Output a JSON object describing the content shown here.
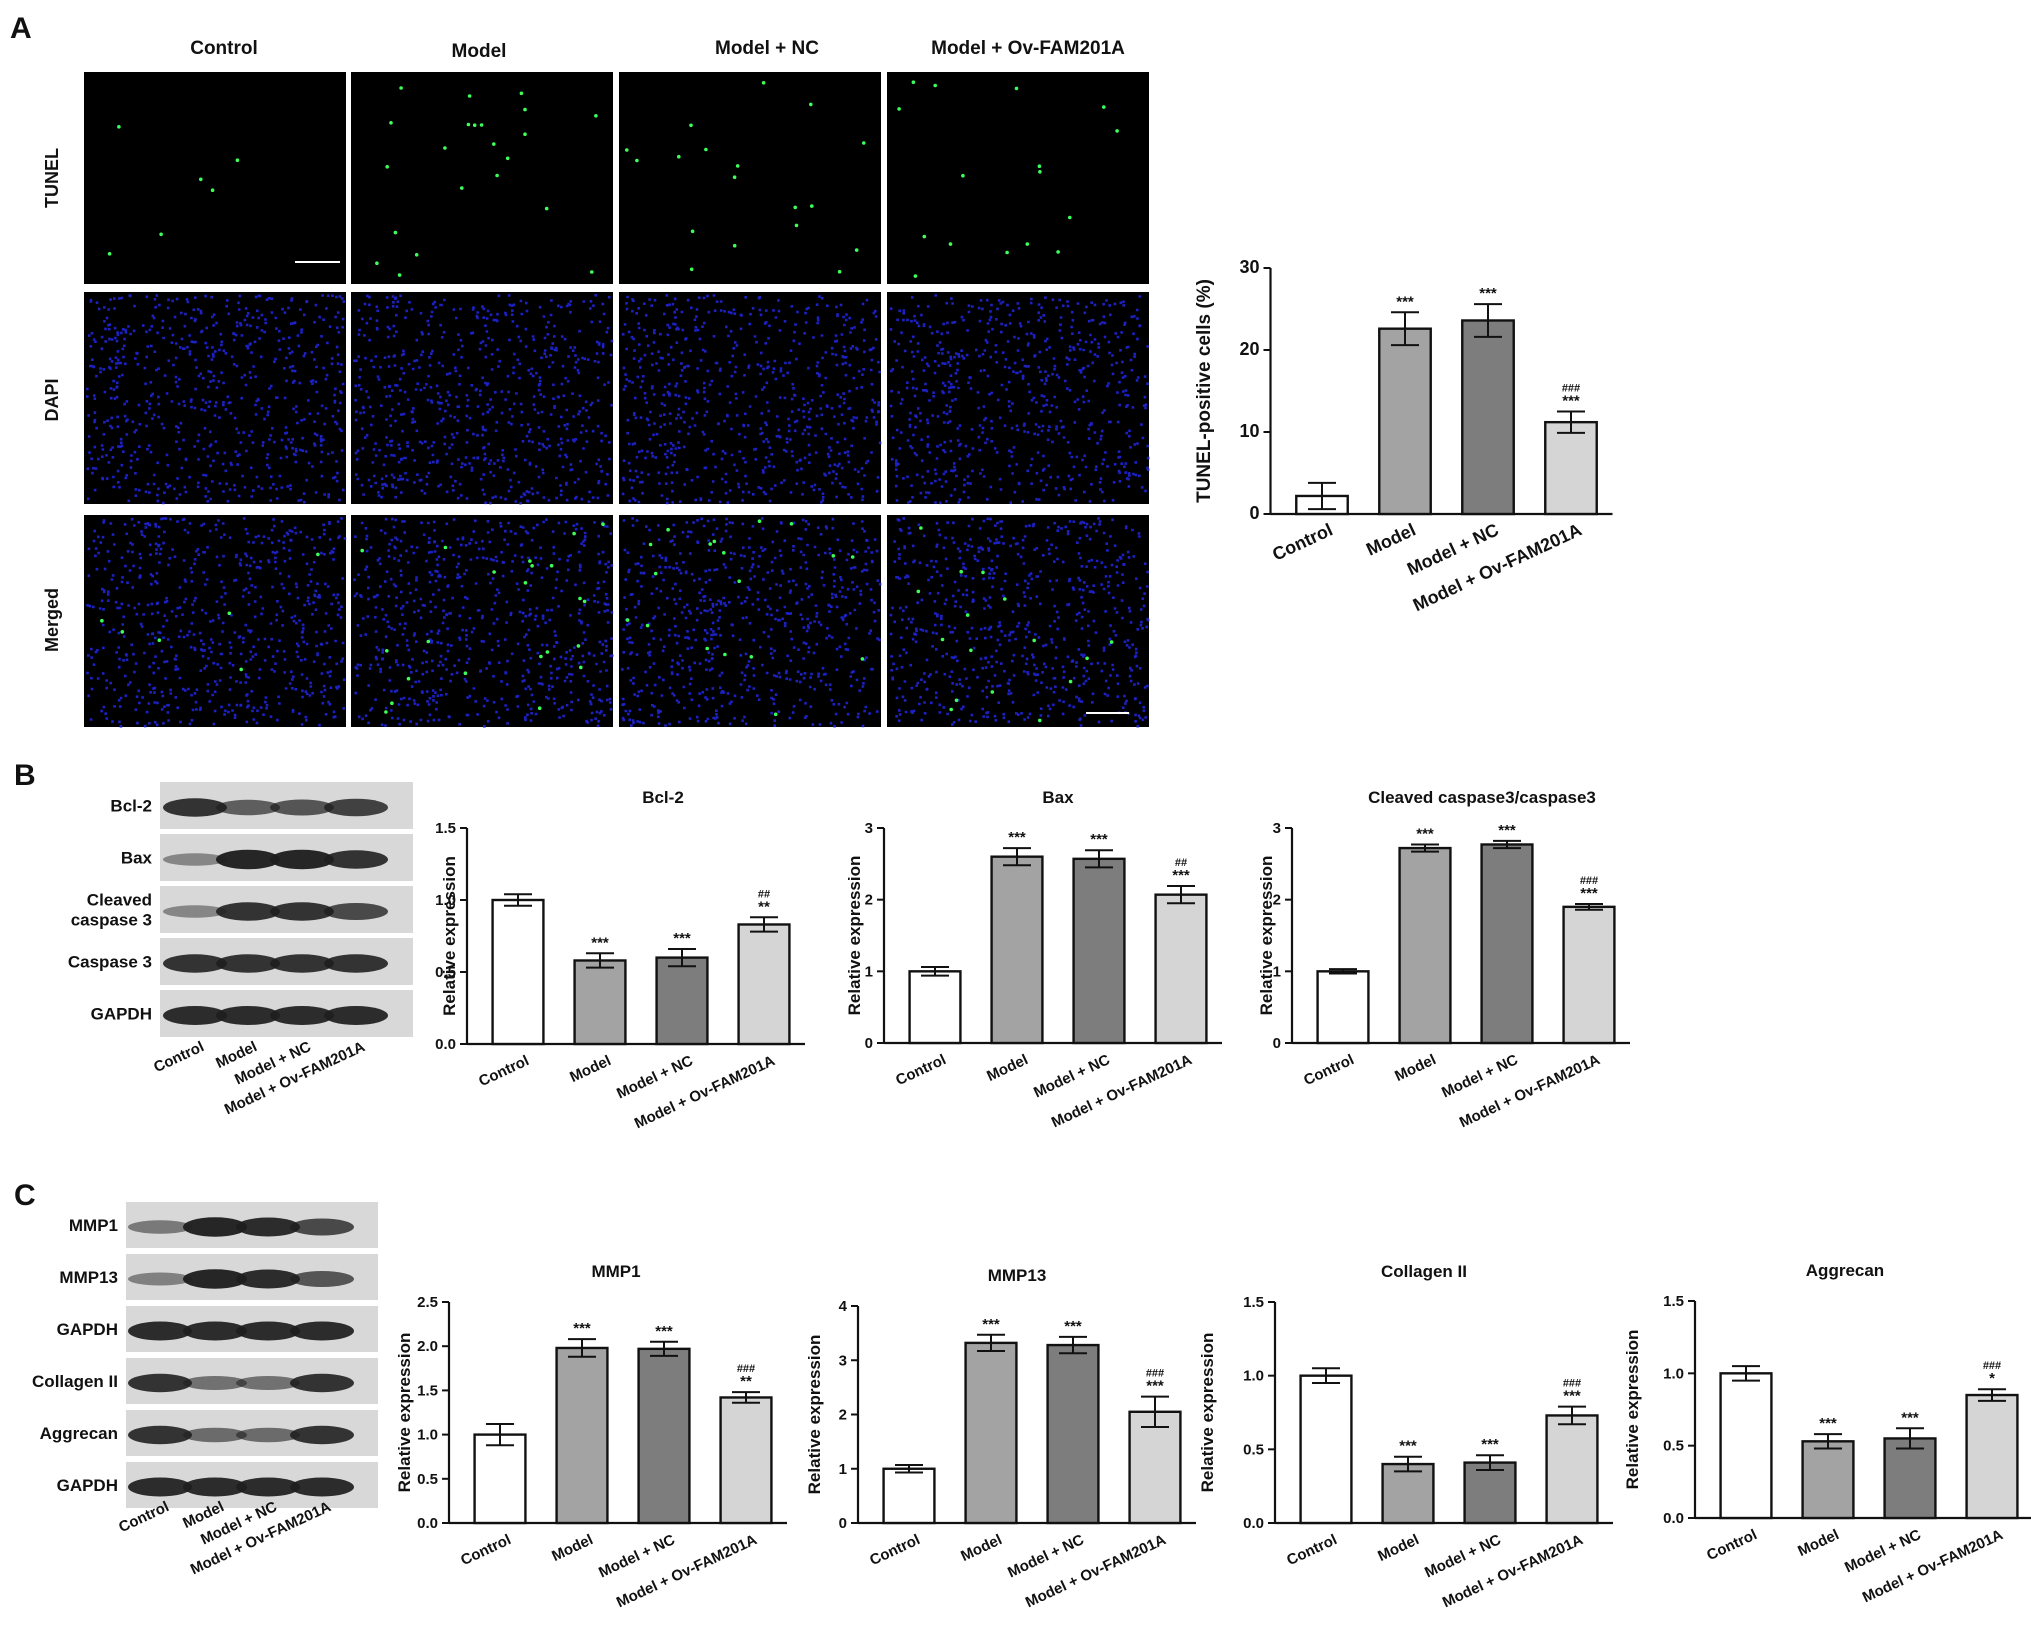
{
  "panels": {
    "a": "A",
    "b": "B",
    "c": "C"
  },
  "groups": [
    "Control",
    "Model",
    "Model + NC",
    "Model + Ov-FAM201A"
  ],
  "colors": {
    "control": "#ffffff",
    "model": "#a3a3a3",
    "nc": "#7d7d7d",
    "ov": "#d5d5d5",
    "nucleus": "#1f25d8",
    "tunel": "#3cff5a",
    "band": "#1e1e1e"
  },
  "micrograph": {
    "rows": [
      "TUNEL",
      "DAPI",
      "Merged"
    ]
  },
  "blot_b": {
    "labels": [
      "Bcl-2",
      "Bax",
      "Cleaved\ncaspase 3",
      "Caspase 3",
      "GAPDH"
    ]
  },
  "blot_c": {
    "labels": [
      "MMP1",
      "MMP13",
      "GAPDH",
      "Collagen II",
      "Aggrecan",
      "GAPDH"
    ]
  },
  "chart_data": [
    {
      "id": "tunel",
      "type": "bar",
      "title": "",
      "ylabel": "TUNEL-positive cells (%)",
      "categories": [
        "Control",
        "Model",
        "Model + NC",
        "Model + Ov-FAM201A"
      ],
      "values": [
        2.2,
        22.6,
        23.6,
        11.2
      ],
      "errors": [
        1.6,
        2.0,
        2.0,
        1.3
      ],
      "annotations": [
        "",
        "***",
        "***",
        "###\n***"
      ],
      "ylim": [
        0,
        30
      ],
      "yticks": [
        "0",
        "10",
        "20",
        "30"
      ]
    },
    {
      "id": "bcl2",
      "type": "bar",
      "title": "Bcl-2",
      "ylabel": "Relative expression",
      "categories": [
        "Control",
        "Model",
        "Model + NC",
        "Model + Ov-FAM201A"
      ],
      "values": [
        1.0,
        0.58,
        0.6,
        0.83
      ],
      "errors": [
        0.04,
        0.05,
        0.06,
        0.05
      ],
      "annotations": [
        "",
        "***",
        "***",
        "##\n**"
      ],
      "ylim": [
        0,
        1.5
      ],
      "yticks": [
        "0.0",
        "0.5",
        "1.0",
        "1.5"
      ]
    },
    {
      "id": "bax",
      "type": "bar",
      "title": "Bax",
      "ylabel": "Relative expression",
      "categories": [
        "Control",
        "Model",
        "Model + NC",
        "Model + Ov-FAM201A"
      ],
      "values": [
        1.0,
        2.6,
        2.57,
        2.07
      ],
      "errors": [
        0.06,
        0.12,
        0.12,
        0.12
      ],
      "annotations": [
        "",
        "***",
        "***",
        "##\n***"
      ],
      "ylim": [
        0,
        3
      ],
      "yticks": [
        "0",
        "1",
        "2",
        "3"
      ]
    },
    {
      "id": "cleaved",
      "type": "bar",
      "title": "Cleaved caspase3/caspase3",
      "ylabel": "Relative expression",
      "categories": [
        "Control",
        "Model",
        "Model + NC",
        "Model + Ov-FAM201A"
      ],
      "values": [
        1.0,
        2.72,
        2.77,
        1.9
      ],
      "errors": [
        0.03,
        0.05,
        0.05,
        0.04
      ],
      "annotations": [
        "",
        "***",
        "***",
        "###\n***"
      ],
      "ylim": [
        0,
        3
      ],
      "yticks": [
        "0",
        "1",
        "2",
        "3"
      ]
    },
    {
      "id": "mmp1",
      "type": "bar",
      "title": "MMP1",
      "ylabel": "Relative expression",
      "categories": [
        "Control",
        "Model",
        "Model + NC",
        "Model + Ov-FAM201A"
      ],
      "values": [
        1.0,
        1.98,
        1.97,
        1.42
      ],
      "errors": [
        0.12,
        0.1,
        0.08,
        0.06
      ],
      "annotations": [
        "",
        "***",
        "***",
        "###\n**"
      ],
      "ylim": [
        0,
        2.5
      ],
      "yticks": [
        "0.0",
        "0.5",
        "1.0",
        "1.5",
        "2.0",
        "2.5"
      ]
    },
    {
      "id": "mmp13",
      "type": "bar",
      "title": "MMP13",
      "ylabel": "Relative expression",
      "categories": [
        "Control",
        "Model",
        "Model + NC",
        "Model + Ov-FAM201A"
      ],
      "values": [
        1.0,
        3.32,
        3.28,
        2.05
      ],
      "errors": [
        0.07,
        0.15,
        0.15,
        0.28
      ],
      "annotations": [
        "",
        "***",
        "***",
        "###\n***"
      ],
      "ylim": [
        0,
        4
      ],
      "yticks": [
        "0",
        "1",
        "2",
        "3",
        "4"
      ]
    },
    {
      "id": "collagen",
      "type": "bar",
      "title": "Collagen II",
      "ylabel": "Relative expression",
      "categories": [
        "Control",
        "Model",
        "Model + NC",
        "Model + Ov-FAM201A"
      ],
      "values": [
        1.0,
        0.4,
        0.41,
        0.73
      ],
      "errors": [
        0.05,
        0.05,
        0.05,
        0.06
      ],
      "annotations": [
        "",
        "***",
        "***",
        "###\n***"
      ],
      "ylim": [
        0,
        1.5
      ],
      "yticks": [
        "0.0",
        "0.5",
        "1.0",
        "1.5"
      ]
    },
    {
      "id": "aggrecan",
      "type": "bar",
      "title": "Aggrecan",
      "ylabel": "Relative expression",
      "categories": [
        "Control",
        "Model",
        "Model + NC",
        "Model + Ov-FAM201A"
      ],
      "values": [
        1.0,
        0.53,
        0.55,
        0.85
      ],
      "errors": [
        0.05,
        0.05,
        0.07,
        0.04
      ],
      "annotations": [
        "",
        "***",
        "***",
        "###\n*"
      ],
      "ylim": [
        0,
        1.5
      ],
      "yticks": [
        "0.0",
        "0.5",
        "1.0",
        "1.5"
      ]
    }
  ]
}
